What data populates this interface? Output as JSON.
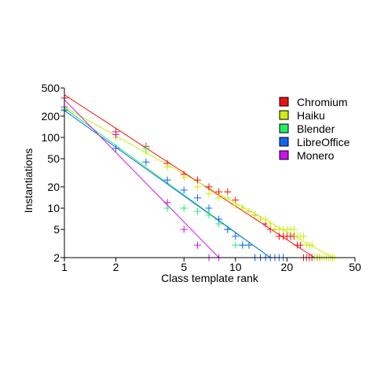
{
  "chart_data": {
    "type": "scatter",
    "xlabel": "Class template rank",
    "ylabel": "Instantiations",
    "x_scale": "log",
    "y_scale": "log",
    "xlim": [
      1,
      50
    ],
    "ylim": [
      2,
      500
    ],
    "x_ticks": [
      1,
      2,
      5,
      10,
      20,
      50
    ],
    "y_ticks": [
      2,
      5,
      10,
      20,
      50,
      100,
      200,
      500
    ],
    "grid": false,
    "legend_position": "top-right",
    "series": [
      {
        "name": "Chromium",
        "color": "#ee1111",
        "points": [
          [
            1,
            360
          ],
          [
            2,
            120
          ],
          [
            3,
            75
          ],
          [
            4,
            43
          ],
          [
            5,
            30
          ],
          [
            6,
            25
          ],
          [
            7,
            20
          ],
          [
            8,
            17
          ],
          [
            9,
            17
          ],
          [
            10,
            13
          ],
          [
            11,
            10
          ],
          [
            12,
            9
          ],
          [
            13,
            8
          ],
          [
            14,
            7
          ],
          [
            15,
            6
          ],
          [
            16,
            5
          ],
          [
            17,
            5
          ],
          [
            18,
            4
          ],
          [
            19,
            4
          ],
          [
            20,
            4
          ],
          [
            21,
            4
          ],
          [
            22,
            4
          ],
          [
            23,
            3
          ],
          [
            24,
            3
          ],
          [
            25,
            2
          ],
          [
            26,
            2
          ],
          [
            27,
            2
          ],
          [
            28,
            2
          ],
          [
            29,
            2
          ],
          [
            30,
            2
          ],
          [
            31,
            2
          ]
        ],
        "fit": [
          [
            1,
            400
          ],
          [
            29,
            2
          ]
        ]
      },
      {
        "name": "Haiku",
        "color": "#ccee11",
        "points": [
          [
            1,
            250
          ],
          [
            2,
            100
          ],
          [
            3,
            62
          ],
          [
            4,
            38
          ],
          [
            5,
            27
          ],
          [
            6,
            20
          ],
          [
            7,
            16
          ],
          [
            8,
            14
          ],
          [
            9,
            14
          ],
          [
            10,
            11
          ],
          [
            11,
            10
          ],
          [
            12,
            9
          ],
          [
            13,
            8
          ],
          [
            14,
            7
          ],
          [
            15,
            7
          ],
          [
            16,
            6
          ],
          [
            17,
            5
          ],
          [
            18,
            5
          ],
          [
            19,
            5
          ],
          [
            20,
            5
          ],
          [
            21,
            5
          ],
          [
            22,
            5
          ],
          [
            23,
            4
          ],
          [
            24,
            4
          ],
          [
            25,
            4
          ],
          [
            26,
            3
          ],
          [
            27,
            3
          ],
          [
            28,
            3
          ],
          [
            29,
            2
          ],
          [
            30,
            2
          ],
          [
            31,
            2
          ],
          [
            32,
            2
          ],
          [
            33,
            2
          ],
          [
            34,
            2
          ],
          [
            35,
            2
          ],
          [
            36,
            2
          ],
          [
            37,
            2
          ],
          [
            38,
            2
          ]
        ],
        "fit": [
          [
            1,
            270
          ],
          [
            37,
            2
          ]
        ]
      },
      {
        "name": "Blender",
        "color": "#22ee66",
        "points": [
          [
            1,
            250
          ],
          [
            2,
            110
          ],
          [
            3,
            70
          ],
          [
            4,
            10
          ],
          [
            5,
            10
          ],
          [
            6,
            9
          ],
          [
            7,
            8
          ],
          [
            8,
            6
          ],
          [
            9,
            5
          ],
          [
            10,
            3
          ],
          [
            11,
            3
          ],
          [
            12,
            3
          ],
          [
            13,
            2
          ],
          [
            14,
            2
          ]
        ],
        "fit": [
          [
            1,
            260
          ],
          [
            16,
            2
          ]
        ]
      },
      {
        "name": "LibreOffice",
        "color": "#1166ee",
        "points": [
          [
            1,
            240
          ],
          [
            2,
            70
          ],
          [
            3,
            45
          ],
          [
            4,
            25
          ],
          [
            5,
            18
          ],
          [
            6,
            14
          ],
          [
            7,
            10
          ],
          [
            8,
            7
          ],
          [
            9,
            5
          ],
          [
            10,
            4
          ],
          [
            11,
            3
          ],
          [
            12,
            3
          ],
          [
            13,
            2
          ],
          [
            14,
            2
          ],
          [
            15,
            2
          ],
          [
            16,
            2
          ],
          [
            17,
            2
          ],
          [
            18,
            2
          ],
          [
            19,
            2
          ]
        ],
        "fit": [
          [
            1,
            240
          ],
          [
            16,
            2
          ]
        ]
      },
      {
        "name": "Monero",
        "color": "#cc11ee",
        "points": [
          [
            1,
            270
          ],
          [
            2,
            110
          ],
          [
            4,
            12
          ],
          [
            5,
            5
          ],
          [
            6,
            3
          ],
          [
            7,
            2
          ],
          [
            8,
            2
          ]
        ],
        "fit": [
          [
            1,
            340
          ],
          [
            8,
            2
          ]
        ]
      }
    ]
  }
}
